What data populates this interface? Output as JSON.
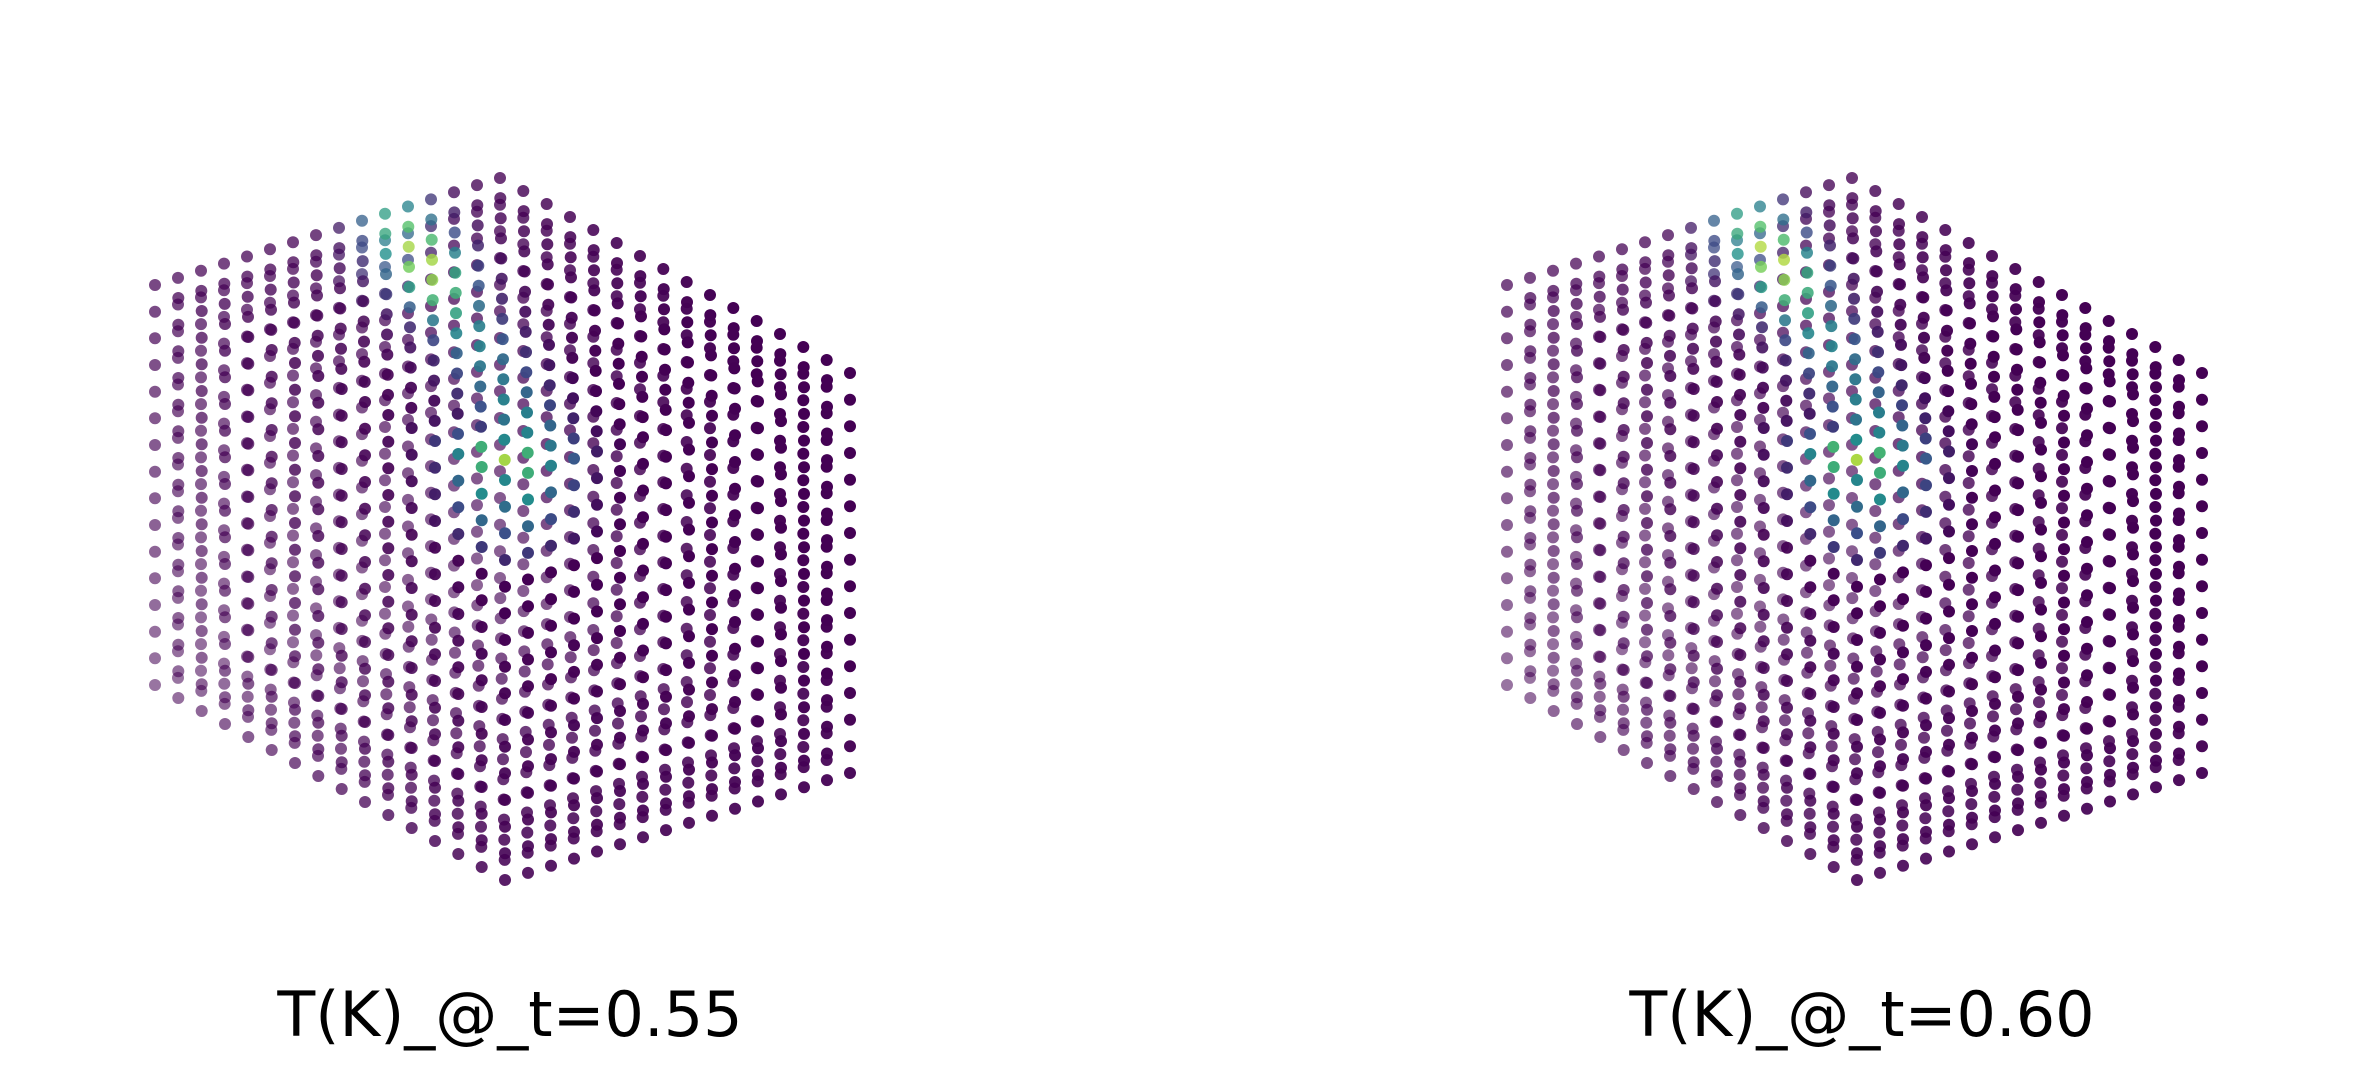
{
  "chart_data": [
    {
      "type": "scatter",
      "title": "T(K)_@_t=0.55",
      "t": 0.55,
      "projection": "3d",
      "axes_visible": false,
      "colormap": "viridis",
      "grid_points_per_axis": 16,
      "hot_region": "trail of high values along the top-front edge of the cube, peaks near the upper-left front and the top-back corner",
      "colors": {
        "low": "#440154",
        "mid": "#21918c",
        "high": "#fde725"
      }
    },
    {
      "type": "scatter",
      "title": "T(K)_@_t=0.60",
      "t": 0.6,
      "projection": "3d",
      "axes_visible": false,
      "colormap": "viridis",
      "grid_points_per_axis": 16,
      "hot_region": "trail of high values along the top-front edge of the cube, peaks near the upper-left front and the top-back corner",
      "colors": {
        "low": "#440154",
        "mid": "#21918c",
        "high": "#fde725"
      }
    }
  ]
}
